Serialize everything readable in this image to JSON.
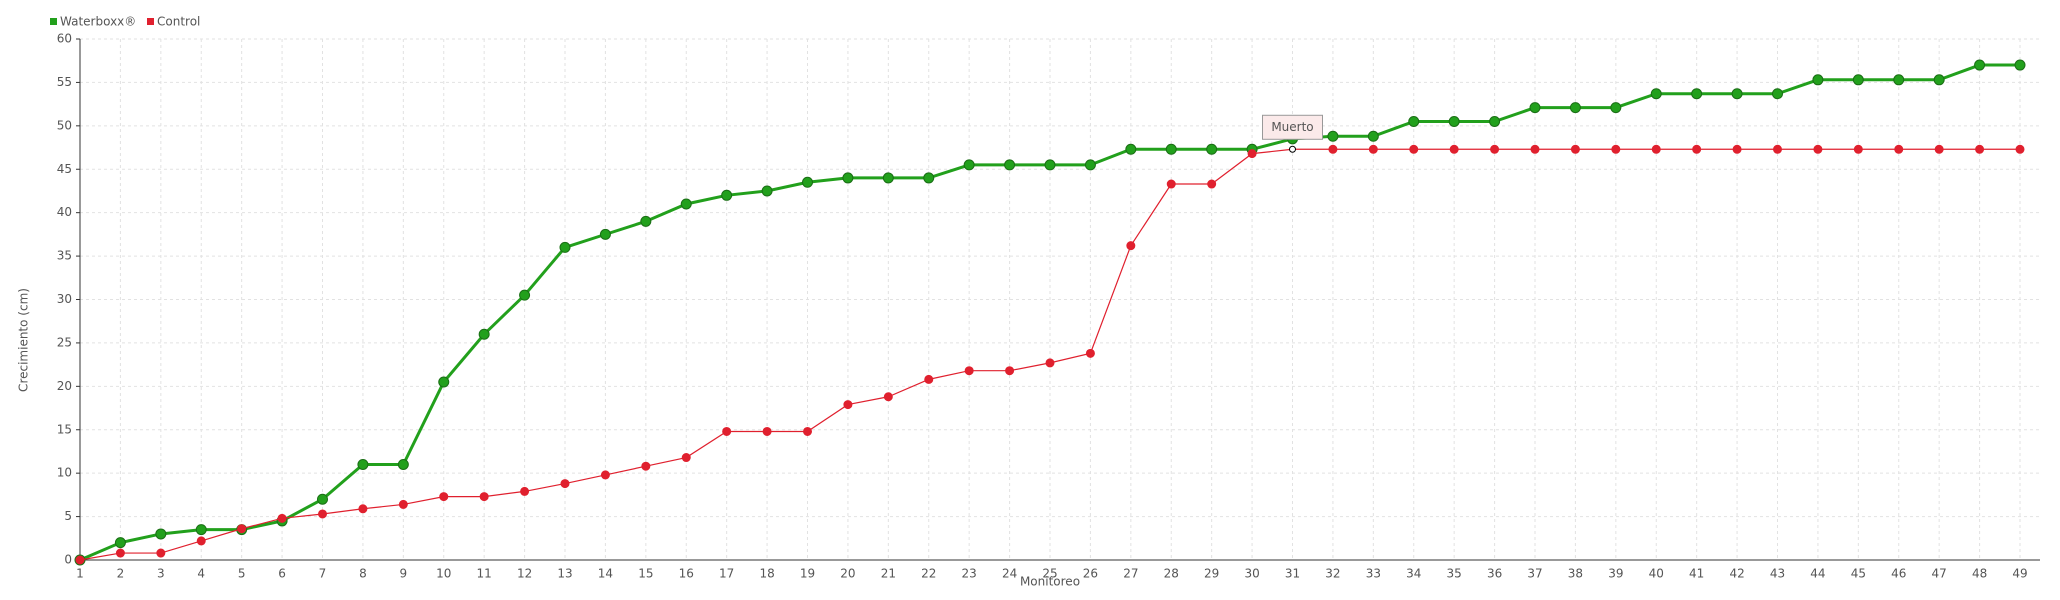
{
  "chart_data": {
    "type": "line",
    "x_label": "Monitoreo",
    "y_label": "Crecimiento (cm)",
    "categories": [
      "1",
      "2",
      "3",
      "4",
      "5",
      "6",
      "7",
      "8",
      "9",
      "10",
      "11",
      "12",
      "13",
      "14",
      "15",
      "16",
      "17",
      "18",
      "19",
      "20",
      "21",
      "22",
      "23",
      "24",
      "25",
      "26",
      "27",
      "28",
      "29",
      "30",
      "31",
      "32",
      "33",
      "34",
      "35",
      "36",
      "37",
      "38",
      "39",
      "40",
      "41",
      "42",
      "43",
      "44",
      "45",
      "46",
      "47",
      "48",
      "49"
    ],
    "series": [
      {
        "name": "Waterboxx®",
        "color": "#22a01c",
        "values": [
          0,
          2,
          3,
          3.5,
          3.5,
          4.5,
          7,
          11,
          11,
          20.5,
          26,
          30.5,
          36,
          37.5,
          39,
          41,
          42,
          42.5,
          43.5,
          44,
          44,
          44,
          45.5,
          45.5,
          45.5,
          45.5,
          47.3,
          47.3,
          47.3,
          47.3,
          48.5,
          48.8,
          48.8,
          50.5,
          50.5,
          50.5,
          52.1,
          52.1,
          52.1,
          53.7,
          53.7,
          53.7,
          53.7,
          55.3,
          55.3,
          55.3,
          55.3,
          57,
          57
        ]
      },
      {
        "name": "Control",
        "color": "#e0202e",
        "values": [
          0,
          0.8,
          0.8,
          2.2,
          3.6,
          4.8,
          5.3,
          5.9,
          6.4,
          7.3,
          7.3,
          7.9,
          8.8,
          9.8,
          10.8,
          11.8,
          14.8,
          14.8,
          14.8,
          17.9,
          18.8,
          20.8,
          21.8,
          21.8,
          22.7,
          23.8,
          36.2,
          43.3,
          43.3,
          46.8,
          47.3,
          47.3,
          47.3,
          47.3,
          47.3,
          47.3,
          47.3,
          47.3,
          47.3,
          47.3,
          47.3,
          47.3,
          47.3,
          47.3,
          47.3,
          47.3,
          47.3,
          47.3,
          47.3
        ]
      }
    ],
    "annotation": {
      "text": "Muerto",
      "x": "31"
    },
    "ylim": [
      0,
      60
    ],
    "yticks": [
      0,
      5,
      10,
      15,
      20,
      25,
      30,
      35,
      40,
      45,
      50,
      55,
      60
    ],
    "grid": true
  }
}
